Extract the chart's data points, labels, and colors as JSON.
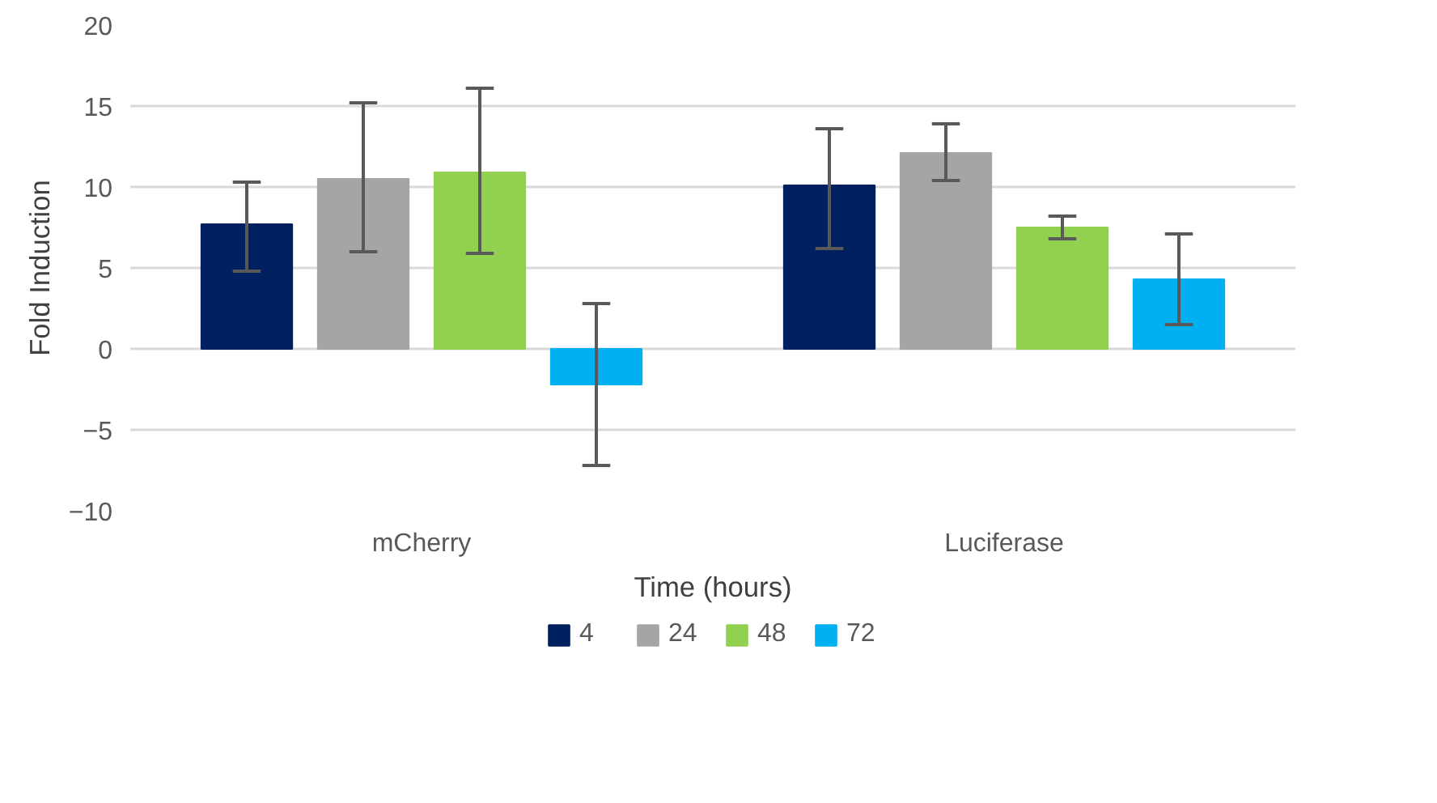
{
  "chart_data": {
    "type": "bar",
    "xlabel": "Time (hours)",
    "ylabel": "Fold Induction",
    "categories": [
      "mCherry",
      "Luciferase"
    ],
    "series": [
      {
        "name": "4",
        "color": "#002060",
        "values": [
          7.7,
          10.1
        ],
        "errors": [
          [
            4.8,
            10.3
          ],
          [
            6.2,
            13.6
          ]
        ]
      },
      {
        "name": "24",
        "color": "#a5a5a5",
        "values": [
          10.5,
          12.1
        ],
        "errors": [
          [
            6.0,
            15.2
          ],
          [
            10.4,
            13.9
          ]
        ]
      },
      {
        "name": "48",
        "color": "#92d050",
        "values": [
          10.9,
          7.5
        ],
        "errors": [
          [
            5.9,
            16.1
          ],
          [
            6.8,
            8.2
          ]
        ]
      },
      {
        "name": "72",
        "color": "#00b0f0",
        "values": [
          -2.2,
          4.3
        ],
        "errors": [
          [
            -7.2,
            2.8
          ],
          [
            1.5,
            7.1
          ]
        ]
      }
    ],
    "ylim": [
      -10,
      20
    ],
    "yticks": [
      -10,
      -5,
      0,
      5,
      10,
      15,
      20
    ],
    "grid": "y",
    "legend": "bottom"
  }
}
